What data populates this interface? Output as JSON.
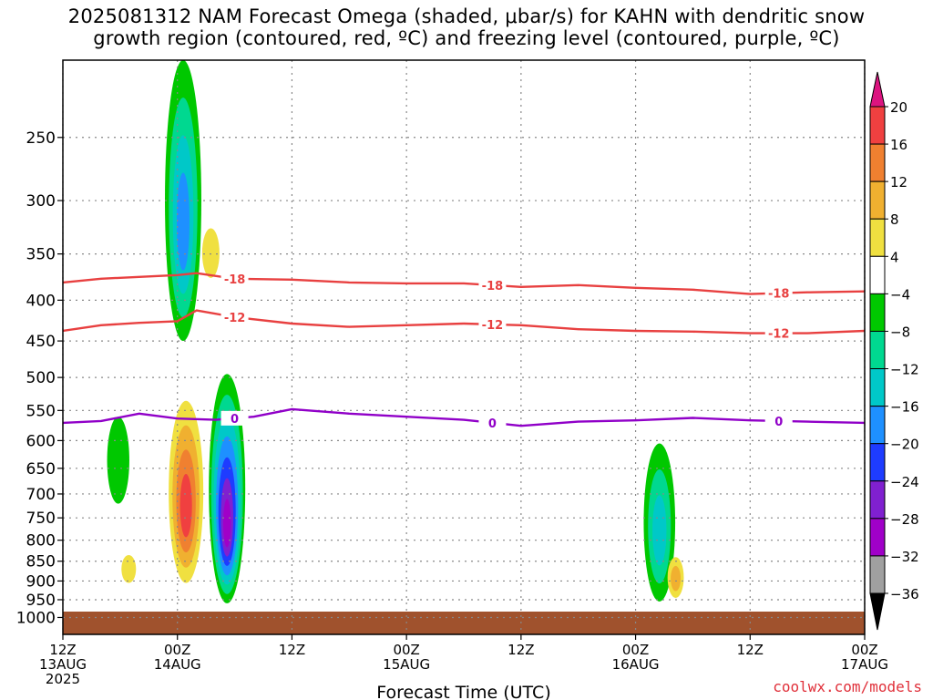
{
  "title": {
    "line1": "2025081312 NAM Forecast Omega (shaded, μbar/s) for KAHN with dendritic snow",
    "line2": "growth region (contoured, red, ºC) and freezing level (contoured, purple, ºC)"
  },
  "credit": "coolwx.com/models",
  "chart_data": {
    "type": "heatmap",
    "title": "2025081312 NAM Forecast Omega (shaded, μbar/s) for KAHN with dendritic snow growth region (contoured, red, ºC) and freezing level (contoured, purple, ºC)",
    "xlabel": "Forecast Time (UTC)",
    "ylabel": "",
    "x_range_hours": [
      0,
      84
    ],
    "x_ticks": [
      {
        "hour": 0,
        "lines": [
          "12Z",
          "13AUG",
          "2025"
        ]
      },
      {
        "hour": 12,
        "lines": [
          "00Z",
          "14AUG"
        ]
      },
      {
        "hour": 24,
        "lines": [
          "12Z"
        ]
      },
      {
        "hour": 36,
        "lines": [
          "00Z",
          "15AUG"
        ]
      },
      {
        "hour": 48,
        "lines": [
          "12Z"
        ]
      },
      {
        "hour": 60,
        "lines": [
          "00Z",
          "16AUG"
        ]
      },
      {
        "hour": 72,
        "lines": [
          "12Z"
        ]
      },
      {
        "hour": 84,
        "lines": [
          "00Z",
          "17AUG"
        ]
      }
    ],
    "y_scale": "log-pressure",
    "y_range_hpa": [
      200,
      1050
    ],
    "y_ticks": [
      250,
      300,
      350,
      400,
      450,
      500,
      550,
      600,
      650,
      700,
      750,
      800,
      850,
      900,
      950,
      1000
    ],
    "grid": true,
    "colorbar": {
      "units": "μbar/s",
      "labels": [
        "20",
        "16",
        "12",
        "8",
        "4",
        "−4",
        "−8",
        "−12",
        "−16",
        "−20",
        "−24",
        "−28",
        "−32",
        "−36"
      ],
      "colors": [
        "#dc1480",
        "#f04040",
        "#f08030",
        "#f0b030",
        "#f0e040",
        "#ffffff",
        "#00c800",
        "#00d890",
        "#00c8c8",
        "#1e90ff",
        "#1e3cff",
        "#8020d0",
        "#a000c8",
        "#a0a0a0",
        "#000000"
      ]
    },
    "contours": [
      {
        "color": "#e84040",
        "label": "-18",
        "hour": [
          0,
          4,
          8,
          12,
          14,
          18,
          24,
          30,
          36,
          42,
          48,
          54,
          60,
          66,
          72,
          78,
          84
        ],
        "hpa": [
          380,
          376,
          374,
          372,
          370,
          376,
          377,
          380,
          381,
          381,
          385,
          383,
          386,
          388,
          393,
          391,
          390
        ]
      },
      {
        "color": "#e84040",
        "label": "-12",
        "hour": [
          0,
          4,
          8,
          12,
          14,
          18,
          24,
          30,
          36,
          42,
          48,
          54,
          60,
          66,
          72,
          78,
          84
        ],
        "hpa": [
          437,
          430,
          427,
          425,
          412,
          420,
          428,
          432,
          430,
          428,
          430,
          435,
          437,
          438,
          440,
          440,
          437
        ]
      },
      {
        "color": "#9000c8",
        "label": "0",
        "hour": [
          0,
          4,
          8,
          12,
          16,
          20,
          24,
          30,
          36,
          42,
          48,
          54,
          60,
          66,
          72,
          78,
          84
        ],
        "hpa": [
          570,
          567,
          555,
          563,
          565,
          560,
          548,
          555,
          560,
          565,
          575,
          568,
          566,
          562,
          566,
          568,
          570
        ]
      }
    ],
    "omega_blobs": [
      {
        "hour": 12.6,
        "hpa_top": 200,
        "hpa_bottom": 450,
        "min": -18
      },
      {
        "hour": 5.8,
        "hpa_top": 560,
        "hpa_bottom": 720,
        "min": -6
      },
      {
        "hour": 12.9,
        "hpa_top": 535,
        "hpa_bottom": 905,
        "max": 16
      },
      {
        "hour": 17.2,
        "hpa_top": 495,
        "hpa_bottom": 960,
        "min": -30
      },
      {
        "hour": 6.9,
        "hpa_top": 835,
        "hpa_bottom": 905,
        "max": 6
      },
      {
        "hour": 62.5,
        "hpa_top": 605,
        "hpa_bottom": 955,
        "min": -14
      },
      {
        "hour": 64.2,
        "hpa_top": 840,
        "hpa_bottom": 945,
        "max": 10
      },
      {
        "hour": 15.5,
        "hpa_top": 325,
        "hpa_bottom": 375,
        "max": 5
      }
    ]
  }
}
